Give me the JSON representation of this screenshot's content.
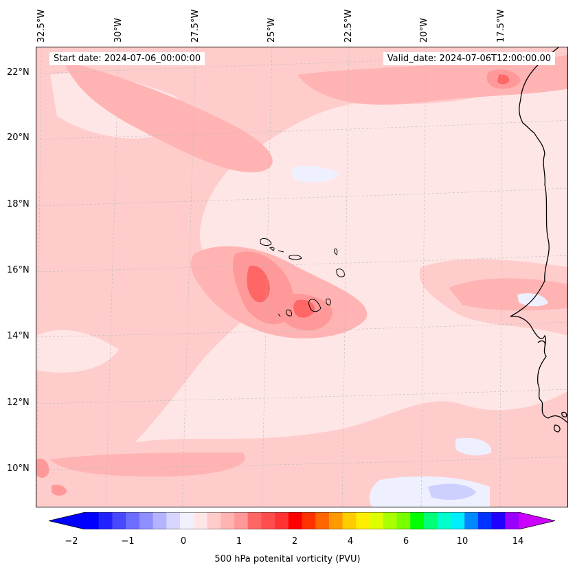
{
  "header": {
    "start_date": "Start date: 2024-07-06_00:00:00",
    "valid_date": "Valid_date: 2024-07-06T12:00:00.00"
  },
  "map": {
    "projection_region": "Atlantic west of Africa, Cape Verde islands",
    "lat_labels": [
      "22°N",
      "20°N",
      "18°N",
      "16°N",
      "14°N",
      "12°N",
      "10°N"
    ],
    "lon_labels": [
      "32.5°W",
      "30°W",
      "27.5°W",
      "25°W",
      "22.5°W",
      "20°W",
      "17.5°W"
    ],
    "field": "500 hPa potential vorticity",
    "colors": {
      "light": "#ffe6e6",
      "pink1": "#ffcccc",
      "pink2": "#ffb3b3",
      "pink3": "#ff9999",
      "pink4": "#ff6666",
      "blue1": "#eef0ff",
      "blue2": "#cdd0ff",
      "coast": "#000000",
      "grid": "#bbbbbb"
    }
  },
  "colorbar": {
    "label": "500 hPa potenital vorticity (PVU)",
    "ticks": [
      "−2",
      "−1",
      "0",
      "1",
      "2",
      "4",
      "6",
      "10",
      "14"
    ],
    "colors": [
      "#0000ff",
      "#2222ff",
      "#4848ff",
      "#6c6cff",
      "#8f8fff",
      "#b3b3ff",
      "#d6d6ff",
      "#f0f0ff",
      "#ffe6e6",
      "#ffcccc",
      "#ffb3b3",
      "#ff9999",
      "#ff6666",
      "#ff4d4d",
      "#ff3333",
      "#ff0000",
      "#ff3300",
      "#ff6600",
      "#ff9900",
      "#ffcc00",
      "#ffee00",
      "#ddff00",
      "#aaff00",
      "#77ff00",
      "#00ff00",
      "#00ff77",
      "#00ffcc",
      "#00eeff",
      "#0088ff",
      "#0033ff",
      "#2200ff",
      "#9900ff"
    ],
    "extend_low_color": "#0000ff",
    "extend_high_color": "#cc00ff"
  }
}
